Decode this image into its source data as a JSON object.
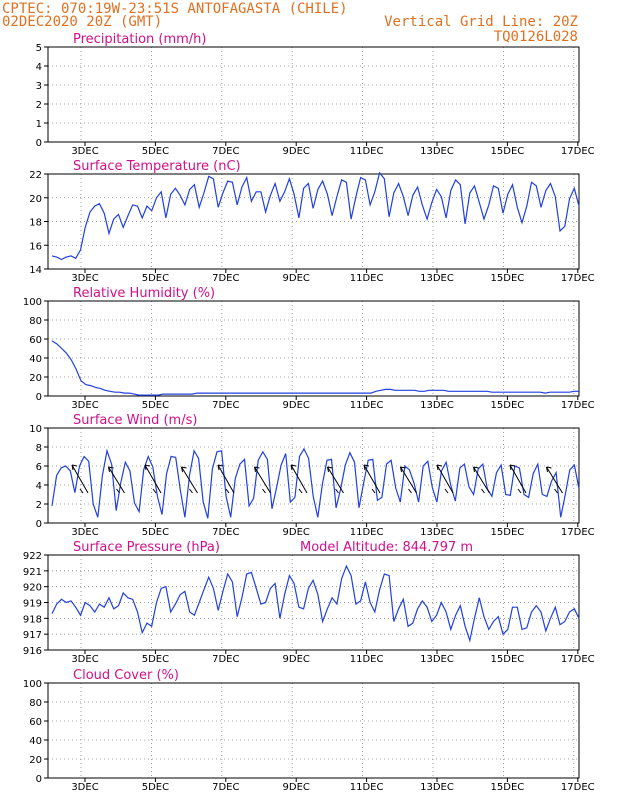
{
  "header": {
    "line1": "CPTEC:   070:19W-23:51S  ANTOFAGASTA (CHILE)",
    "line2": "02DEC2020 20Z (GMT)",
    "right1": "Vertical Grid Line: 20Z",
    "right2": "TQ0126L028"
  },
  "colors": {
    "header": "#e07020",
    "title": "#d0108a",
    "series": "#2040e0"
  },
  "chart_data": [
    {
      "type": "line",
      "title": "Precipitation (mm/h)",
      "ylim": [
        0,
        5
      ],
      "yticks": [
        "0",
        "1",
        "2",
        "3",
        "4",
        "5"
      ],
      "xticks": [
        "3DEC",
        "5DEC",
        "7DEC",
        "9DEC",
        "11DEC",
        "13DEC",
        "15DEC",
        "17DEC"
      ],
      "series": []
    },
    {
      "type": "line",
      "title": "Surface Temperature (nC)",
      "ylim": [
        14,
        22
      ],
      "yticks": [
        "14",
        "16",
        "18",
        "20",
        "22"
      ],
      "xticks": [
        "3DEC",
        "5DEC",
        "7DEC",
        "9DEC",
        "11DEC",
        "13DEC",
        "15DEC",
        "17DEC"
      ],
      "series": [
        {
          "values": [
            15.1,
            15.0,
            14.8,
            15.0,
            15.1,
            14.9,
            15.6,
            17.5,
            18.8,
            19.3,
            19.5,
            18.7,
            17.0,
            18.2,
            18.6,
            17.5,
            18.5,
            19.4,
            19.3,
            18.3,
            19.3,
            18.9,
            20.0,
            20.5,
            18.3,
            20.3,
            20.8,
            20.2,
            19.4,
            20.7,
            21.1,
            19.2,
            20.4,
            21.8,
            21.6,
            19.2,
            20.4,
            21.4,
            21.3,
            19.4,
            20.9,
            21.7,
            19.7,
            20.5,
            20.5,
            18.8,
            20.2,
            21.2,
            19.7,
            20.5,
            21.6,
            20.3,
            18.3,
            20.8,
            21.2,
            19.1,
            20.7,
            21.4,
            20.3,
            18.5,
            20.1,
            21.5,
            21.3,
            18.2,
            20.1,
            21.7,
            21.5,
            19.4,
            20.5,
            22.1,
            21.6,
            18.4,
            20.4,
            21.2,
            20.1,
            18.5,
            20.2,
            20.9,
            19.4,
            18.2,
            19.6,
            20.7,
            20.1,
            18.3,
            20.6,
            21.5,
            21.1,
            17.8,
            20.4,
            21.0,
            19.6,
            18.2,
            19.4,
            21.0,
            20.8,
            18.7,
            20.3,
            21.1,
            19.2,
            17.9,
            19.3,
            21.3,
            21.0,
            19.2,
            20.6,
            21.2,
            20.1,
            17.2,
            17.6,
            19.9,
            20.8,
            19.3
          ]
        }
      ]
    },
    {
      "type": "line",
      "title": "Relative Humidity (%)",
      "ylim": [
        0,
        100
      ],
      "yticks": [
        "0",
        "20",
        "40",
        "60",
        "80",
        "100"
      ],
      "xticks": [
        "3DEC",
        "5DEC",
        "7DEC",
        "9DEC",
        "11DEC",
        "13DEC",
        "15DEC",
        "17DEC"
      ],
      "series": [
        {
          "values": [
            58,
            55,
            50,
            45,
            38,
            28,
            16,
            12,
            11,
            9,
            8,
            6,
            5,
            4,
            4,
            3,
            3,
            2,
            1,
            1,
            1,
            1,
            1,
            2,
            2,
            2,
            2,
            2,
            2,
            2,
            3,
            3,
            3,
            3,
            3,
            3,
            3,
            3,
            3,
            3,
            3,
            3,
            3,
            3,
            3,
            3,
            3,
            3,
            3,
            3,
            3,
            3,
            3,
            3,
            3,
            3,
            3,
            3,
            3,
            3,
            3,
            3,
            3,
            3,
            3,
            3,
            3,
            5,
            6,
            7,
            7,
            6,
            6,
            6,
            6,
            6,
            5,
            5,
            6,
            6,
            6,
            6,
            5,
            5,
            5,
            5,
            5,
            5,
            5,
            5,
            5,
            4,
            4,
            4,
            4,
            4,
            4,
            4,
            4,
            4,
            4,
            4,
            3,
            4,
            4,
            4,
            4,
            4,
            5,
            5
          ]
        }
      ]
    },
    {
      "type": "line",
      "title": "Surface Wind (m/s)",
      "ylim": [
        0,
        10
      ],
      "yticks": [
        "0",
        "2",
        "4",
        "6",
        "8",
        "10"
      ],
      "xticks": [
        "3DEC",
        "5DEC",
        "7DEC",
        "9DEC",
        "11DEC",
        "13DEC",
        "15DEC",
        "17DEC"
      ],
      "series": [
        {
          "values": [
            1.8,
            5.0,
            5.8,
            6.0,
            5.5,
            3.2,
            6.0,
            7.0,
            6.5,
            2.0,
            0.6,
            5.0,
            7.6,
            6.2,
            1.3,
            4.2,
            6.4,
            5.5,
            2.1,
            1.2,
            5.6,
            7.0,
            5.9,
            2.8,
            0.9,
            5.2,
            7.0,
            6.9,
            3.5,
            0.6,
            5.0,
            7.6,
            6.8,
            2.2,
            0.5,
            5.7,
            7.5,
            7.6,
            2.8,
            0.6,
            4.7,
            6.2,
            6.7,
            1.8,
            2.6,
            6.6,
            7.5,
            6.7,
            1.5,
            3.7,
            6.1,
            7.3,
            2.2,
            2.7,
            7.0,
            7.8,
            6.8,
            2.8,
            0.6,
            4.1,
            6.6,
            6.7,
            1.6,
            3.6,
            6.1,
            7.4,
            6.4,
            1.6,
            4.2,
            6.6,
            6.7,
            2.4,
            2.7,
            6.2,
            6.6,
            3.7,
            2.2,
            6.0,
            5.6,
            4.2,
            2.2,
            6.0,
            6.5,
            3.7,
            2.2,
            5.5,
            6.4,
            4.0,
            2.3,
            5.8,
            6.2,
            3.8,
            3.0,
            5.7,
            6.2,
            3.6,
            2.8,
            5.3,
            6.1,
            3.0,
            2.9,
            6.0,
            5.8,
            3.0,
            2.7,
            5.2,
            6.2,
            3.0,
            2.8,
            4.4,
            5.3,
            0.6,
            3.0,
            5.6,
            6.1,
            3.6
          ]
        }
      ]
    },
    {
      "type": "line",
      "title": "Surface Pressure (hPa)",
      "annotation": "Model Altitude:  844.797  m",
      "ylim": [
        916,
        922
      ],
      "yticks": [
        "916",
        "917",
        "918",
        "919",
        "920",
        "921",
        "922"
      ],
      "xticks": [
        "3DEC",
        "5DEC",
        "7DEC",
        "9DEC",
        "11DEC",
        "13DEC",
        "15DEC",
        "17DEC"
      ],
      "series": [
        {
          "values": [
            918.3,
            918.9,
            919.2,
            919.0,
            919.1,
            918.7,
            918.2,
            919.0,
            918.8,
            918.4,
            918.9,
            918.7,
            919.3,
            918.6,
            918.8,
            919.6,
            919.3,
            919.2,
            918.4,
            917.1,
            917.7,
            917.5,
            919.0,
            919.9,
            920.0,
            918.4,
            918.9,
            919.5,
            919.7,
            918.4,
            918.2,
            919.0,
            919.8,
            920.6,
            919.9,
            918.5,
            919.7,
            920.8,
            920.3,
            918.1,
            919.3,
            920.8,
            920.9,
            919.9,
            918.9,
            919.0,
            919.9,
            920.2,
            918.0,
            919.5,
            920.7,
            920.2,
            918.7,
            918.6,
            919.9,
            920.4,
            919.5,
            917.8,
            918.6,
            919.3,
            918.9,
            920.5,
            921.3,
            920.7,
            918.9,
            919.1,
            920.3,
            919.0,
            918.4,
            919.8,
            920.8,
            920.7,
            917.8,
            918.6,
            919.2,
            917.5,
            917.7,
            918.6,
            919.1,
            918.7,
            917.8,
            918.2,
            919.0,
            918.4,
            917.3,
            918.2,
            918.8,
            917.5,
            916.6,
            918.0,
            919.3,
            918.1,
            917.3,
            917.8,
            918.1,
            917.0,
            917.3,
            918.7,
            918.7,
            917.3,
            917.4,
            918.4,
            918.8,
            918.4,
            917.2,
            918.0,
            918.7,
            917.6,
            917.8,
            918.4,
            918.6,
            918.0
          ]
        }
      ]
    },
    {
      "type": "line",
      "title": "Cloud Cover (%)",
      "ylim": [
        0,
        100
      ],
      "yticks": [
        "0",
        "20",
        "40",
        "60",
        "80",
        "100"
      ],
      "xticks": [
        "3DEC",
        "5DEC",
        "7DEC",
        "9DEC",
        "11DEC",
        "13DEC",
        "15DEC",
        "17DEC"
      ],
      "series": []
    }
  ]
}
